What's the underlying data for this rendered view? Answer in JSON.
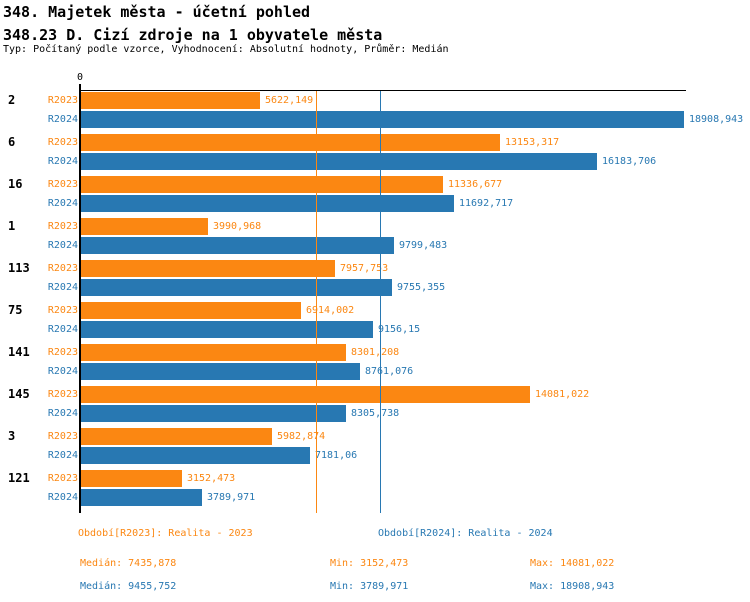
{
  "header": {
    "title": "348. Majetek města - účetní pohled",
    "subtitle": "348.23 D. Cizí zdroje na 1 obyvatele města",
    "meta": "Typ: Počítaný podle vzorce, Vyhodnocení: Absolutní hodnoty, Průměr: Medián"
  },
  "colors": {
    "r2023_orange": "#fb8712",
    "r2024_blue": "#2878b2",
    "axis_black": "#000000",
    "background": "#ffffff"
  },
  "chart_data": {
    "type": "bar",
    "orientation": "horizontal",
    "grid": "median-lines-only",
    "axis": {
      "zero_label": "0",
      "min": 0,
      "max": 18908.943
    },
    "categories": [
      "2",
      "6",
      "16",
      "1",
      "113",
      "75",
      "141",
      "145",
      "3",
      "121"
    ],
    "series": [
      {
        "name": "R2023",
        "legend": "Období[R2023]: Realita - 2023",
        "color": "#fb8712",
        "values": [
          5622.149,
          13153.317,
          11336.677,
          3990.968,
          7957.753,
          6914.002,
          8301.208,
          14081.022,
          5982.874,
          3152.473
        ],
        "labels": [
          "5622,149",
          "13153,317",
          "11336,677",
          "3990,968",
          "7957,753",
          "6914,002",
          "8301,208",
          "14081,022",
          "5982,874",
          "3152,473"
        ]
      },
      {
        "name": "R2024",
        "legend": "Období[R2024]: Realita - 2024",
        "color": "#2878b2",
        "values": [
          18908.943,
          16183.706,
          11692.717,
          9799.483,
          9755.355,
          9156.15,
          8761.076,
          8305.738,
          7181.06,
          3789.971
        ],
        "labels": [
          "18908,943",
          "16183,706",
          "11692,717",
          "9799,483",
          "9755,355",
          "9156,15",
          "8761,076",
          "8305,738",
          "7181,06",
          "3789,971"
        ]
      }
    ],
    "medians": [
      {
        "series": "R2023",
        "value": 7435.878
      },
      {
        "series": "R2024",
        "value": 9455.752
      }
    ]
  },
  "legend": {
    "periods": [
      {
        "label": "Období[R2023]: Realita - 2023"
      },
      {
        "label": "Období[R2024]: Realita - 2024"
      }
    ],
    "stats": [
      {
        "median": "Medián: 7435,878",
        "min": "Min: 3152,473",
        "max": "Max: 14081,022"
      },
      {
        "median": "Medián: 9455,752",
        "min": "Min: 3789,971",
        "max": "Max: 18908,943"
      }
    ]
  }
}
